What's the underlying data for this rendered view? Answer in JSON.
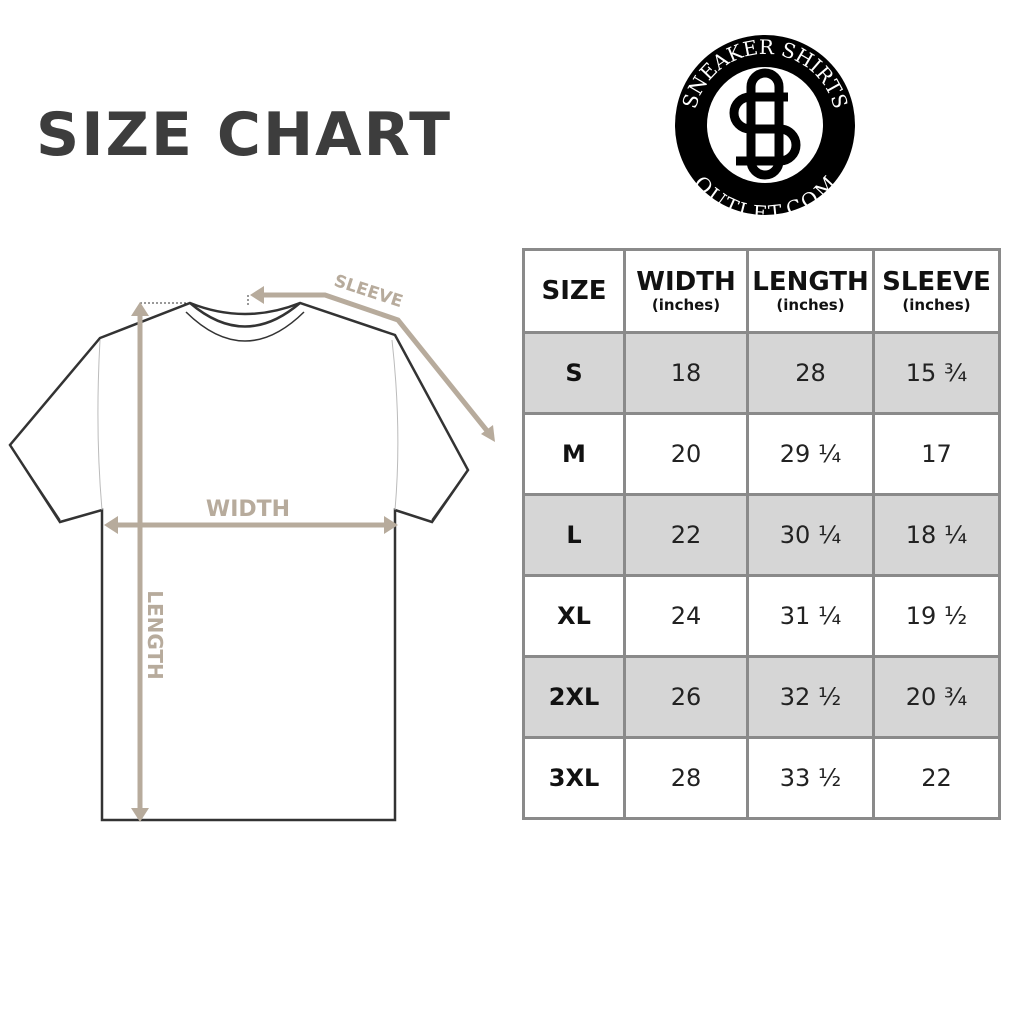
{
  "title": "SIZE CHART",
  "logo": {
    "top_text": "SNEAKER SHIRTS",
    "bottom_text": "OUTLET.COM",
    "monogram": "SS"
  },
  "diagram": {
    "sleeve_label": "SLEEVE",
    "width_label": "WIDTH",
    "length_label": "LENGTH",
    "arrow_color": "#b7ab9c"
  },
  "table": {
    "headers": [
      {
        "label": "SIZE",
        "unit": ""
      },
      {
        "label": "WIDTH",
        "unit": "(inches)"
      },
      {
        "label": "LENGTH",
        "unit": "(inches)"
      },
      {
        "label": "SLEEVE",
        "unit": "(inches)"
      }
    ],
    "rows": [
      [
        "S",
        "18",
        "28",
        "15 ¾"
      ],
      [
        "M",
        "20",
        "29 ¼",
        "17"
      ],
      [
        "L",
        "22",
        "30 ¼",
        "18 ¼"
      ],
      [
        "XL",
        "24",
        "31 ¼",
        "19 ½"
      ],
      [
        "2XL",
        "26",
        "32 ½",
        "20 ¾"
      ],
      [
        "3XL",
        "28",
        "33 ½",
        "22"
      ]
    ]
  }
}
